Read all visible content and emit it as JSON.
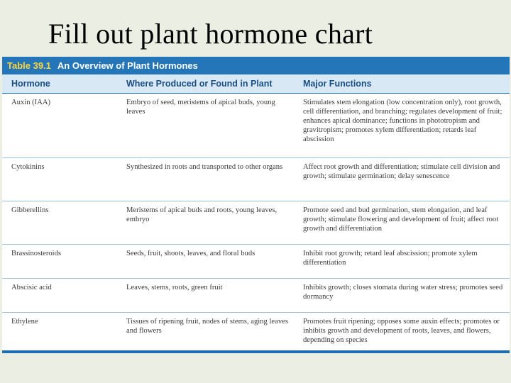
{
  "slide": {
    "title": "Fill out plant hormone chart"
  },
  "table": {
    "number": "Table 39.1",
    "caption": "An Overview of Plant Hormones",
    "headers": {
      "hormone": "Hormone",
      "where": "Where Produced or Found in Plant",
      "functions": "Major Functions"
    },
    "rows": [
      {
        "hormone": "Auxin (IAA)",
        "where": "Embryo of seed, meristems of apical buds, young leaves",
        "functions": "Stimulates stem elongation (low concentration only), root growth, cell differentiation, and branching; regulates development of fruit; enhances apical dominance; functions in phototropism and gravitropism; promotes xylem differentiation; retards leaf abscission"
      },
      {
        "hormone": "Cytokinins",
        "where": "Synthesized in roots and transported to other organs",
        "functions": "Affect root growth and differentiation; stimulate cell division and growth; stimulate germination; delay senescence"
      },
      {
        "hormone": "Gibberellins",
        "where": "Meristems of apical buds and roots, young leaves, embryo",
        "functions": "Promote seed and bud germination, stem elongation, and leaf growth; stimulate flowering and development of fruit; affect root growth and differentiation"
      },
      {
        "hormone": "Brassinosteroids",
        "where": "Seeds, fruit, shoots, leaves, and floral buds",
        "functions": "Inhibit root growth; retard leaf abscission; promote xylem differentiation"
      },
      {
        "hormone": "Abscisic acid",
        "where": "Leaves, stems, roots, green fruit",
        "functions": "Inhibits growth; closes stomata during water stress; promotes seed dormancy"
      },
      {
        "hormone": "Ethylene",
        "where": "Tissues of ripening fruit, nodes of stems, aging leaves and flowers",
        "functions": "Promotes fruit ripening; opposes some auxin effects; promotes or inhibits growth and development of roots, leaves, and flowers, depending on species"
      }
    ]
  }
}
